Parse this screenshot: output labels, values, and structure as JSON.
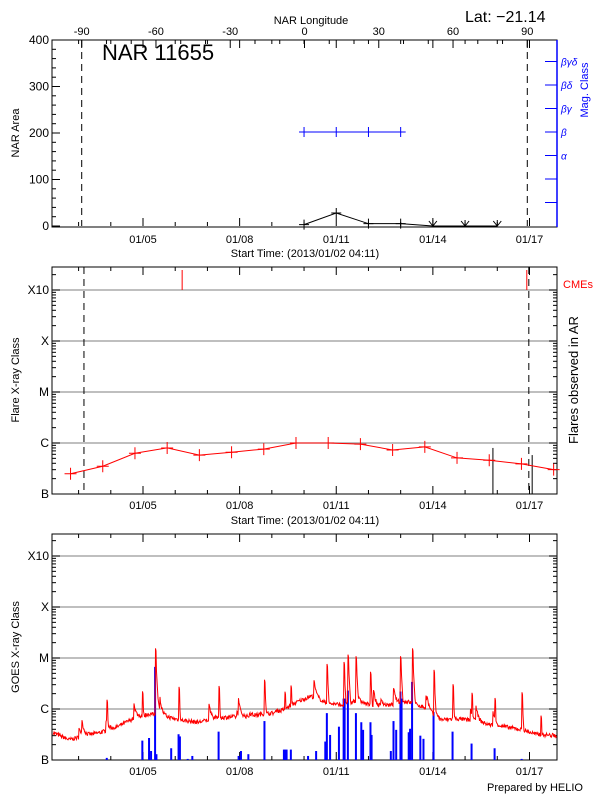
{
  "header": {
    "lat_label": "Lat: −21.14",
    "top_axis_label": "NAR Longitude",
    "region_label": "NAR 11655",
    "footer": "Prepared by HELIO"
  },
  "colors": {
    "flare": "#ff0000",
    "mag_class": "#0000ff",
    "goes": "#ff0000",
    "goes_events": "#0000ff",
    "grid": "#999999",
    "axis": "#000000"
  },
  "chart_data": [
    {
      "type": "line",
      "ylabel": "NAR Area",
      "ylim": [
        0,
        400
      ],
      "yticks": [
        "0",
        "100",
        "200",
        "300",
        "400"
      ],
      "xlabel": "Start Time: (2013/01/02 04:11)",
      "x_range": [
        "01/02 04:11",
        "01/17 20:30"
      ],
      "xticks": [
        "01/05",
        "01/08",
        "01/11",
        "01/14",
        "01/17"
      ],
      "top_axis": {
        "label": "NAR Longitude",
        "xlim": [
          -102,
          102
        ],
        "ticks": [
          "-90",
          "-60",
          "-30",
          "0",
          "30",
          "60",
          "90"
        ]
      },
      "limb_longitudes": [
        -90,
        90
      ],
      "annotation": "NAR 11655",
      "area_series": [
        {
          "t": "01/10 00:00",
          "v": 3,
          "marker": "plus"
        },
        {
          "t": "01/11 00:00",
          "v": 28,
          "marker": "plus"
        },
        {
          "t": "01/12 00:00",
          "v": 5,
          "marker": "plus"
        },
        {
          "t": "01/13 00:00",
          "v": 5,
          "marker": "plus"
        },
        {
          "t": "01/14 00:00",
          "v": 0,
          "marker": "arrow-down"
        },
        {
          "t": "01/15 00:00",
          "v": 0,
          "marker": "arrow-down"
        },
        {
          "t": "01/16 00:00",
          "v": 0,
          "marker": "arrow-down"
        }
      ],
      "mag_class_axis": {
        "label": "Mag. Class",
        "classes": [
          "",
          "",
          "α",
          "β",
          "βγ",
          "βδ",
          "βγδ"
        ]
      },
      "mag_class_series": [
        {
          "t": "01/10 00:00",
          "class": "β"
        },
        {
          "t": "01/11 00:00",
          "class": "β"
        },
        {
          "t": "01/12 00:00",
          "class": "β"
        },
        {
          "t": "01/13 00:00",
          "class": "β"
        }
      ]
    },
    {
      "type": "line",
      "ylabel": "Flare X-ray Class",
      "y2label": "Flares observed in AR",
      "scale": "log",
      "yticks": [
        "B",
        "C",
        "M",
        "X",
        "X10"
      ],
      "xlabel": "Start Time: (2013/01/02 04:11)",
      "x_range": [
        "01/02 04:11",
        "01/17 20:30"
      ],
      "xticks": [
        "01/05",
        "01/08",
        "01/11",
        "01/14",
        "01/17"
      ],
      "grid": true,
      "limb_times": [
        "01/03 04:00",
        "01/16 23:30"
      ],
      "flare_class_series": [
        {
          "t": "01/02 18:00",
          "c": "B2.5"
        },
        {
          "t": "01/03 18:00",
          "c": "B3.5"
        },
        {
          "t": "01/04 18:00",
          "c": "B6.3"
        },
        {
          "t": "01/05 18:00",
          "c": "B8.0"
        },
        {
          "t": "01/06 18:00",
          "c": "B5.8"
        },
        {
          "t": "01/07 18:00",
          "c": "B6.6"
        },
        {
          "t": "01/08 18:00",
          "c": "B7.6"
        },
        {
          "t": "01/09 18:00",
          "c": "C1.0"
        },
        {
          "t": "01/10 18:00",
          "c": "C1.0"
        },
        {
          "t": "01/11 18:00",
          "c": "B9.5"
        },
        {
          "t": "01/12 18:00",
          "c": "B7.3"
        },
        {
          "t": "01/13 18:00",
          "c": "B8.4"
        },
        {
          "t": "01/14 18:00",
          "c": "B5.1"
        },
        {
          "t": "01/15 18:00",
          "c": "B4.6"
        },
        {
          "t": "01/16 18:00",
          "c": "B3.9"
        },
        {
          "t": "01/17 18:00",
          "c": "B3.0"
        }
      ],
      "cme_label": "CMEs",
      "cmes": [
        "01/06 05:10",
        "01/16 22:00"
      ],
      "ar_flares": [
        {
          "t": "01/15 20:45",
          "c": "B8.0"
        },
        {
          "t": "01/17 02:00",
          "c": "B5.8"
        }
      ]
    },
    {
      "type": "line",
      "ylabel": "GOES X-ray Class",
      "scale": "log",
      "yticks": [
        "B",
        "C",
        "M",
        "X",
        "X10"
      ],
      "x_range": [
        "01/02 04:11",
        "01/17 20:30"
      ],
      "xticks": [
        "01/05",
        "01/08",
        "01/11",
        "01/14",
        "01/17"
      ],
      "grid": true,
      "goes_background": [
        {
          "t": "01/02 04:11",
          "c": "B3.5"
        },
        {
          "t": "01/02 17:00",
          "c": "B2.5"
        },
        {
          "t": "01/03 05:00",
          "c": "B3.0"
        },
        {
          "t": "01/03 17:00",
          "c": "B3.5"
        },
        {
          "t": "01/04 05:00",
          "c": "B4.5"
        },
        {
          "t": "01/04 17:00",
          "c": "B6.5"
        },
        {
          "t": "01/05 05:00",
          "c": "B8.0"
        },
        {
          "t": "01/05 17:00",
          "c": "B7.0"
        },
        {
          "t": "01/06 05:00",
          "c": "B6.0"
        },
        {
          "t": "01/06 17:00",
          "c": "B5.5"
        },
        {
          "t": "01/07 05:00",
          "c": "B6.5"
        },
        {
          "t": "01/07 17:00",
          "c": "B7.0"
        },
        {
          "t": "01/08 05:00",
          "c": "B7.0"
        },
        {
          "t": "01/08 17:00",
          "c": "B8.0"
        },
        {
          "t": "01/09 05:00",
          "c": "B8.5"
        },
        {
          "t": "01/09 17:00",
          "c": "C1.3"
        },
        {
          "t": "01/10 05:00",
          "c": "C1.8"
        },
        {
          "t": "01/10 17:00",
          "c": "C1.3"
        },
        {
          "t": "01/11 05:00",
          "c": "C1.2"
        },
        {
          "t": "01/11 17:00",
          "c": "C1.4"
        },
        {
          "t": "01/12 05:00",
          "c": "C1.1"
        },
        {
          "t": "01/12 17:00",
          "c": "C1.2"
        },
        {
          "t": "01/13 05:00",
          "c": "C1.4"
        },
        {
          "t": "01/13 17:00",
          "c": "C1.1"
        },
        {
          "t": "01/14 05:00",
          "c": "B6.0"
        },
        {
          "t": "01/14 17:00",
          "c": "B6.5"
        },
        {
          "t": "01/15 05:00",
          "c": "B6.0"
        },
        {
          "t": "01/15 17:00",
          "c": "B5.0"
        },
        {
          "t": "01/16 05:00",
          "c": "B4.5"
        },
        {
          "t": "01/16 17:00",
          "c": "B4.0"
        },
        {
          "t": "01/17 05:00",
          "c": "B3.2"
        },
        {
          "t": "01/17 20:30",
          "c": "B3.0"
        }
      ],
      "goes_peaks": [
        {
          "t": "01/03 21:00",
          "c": "C1.6"
        },
        {
          "t": "01/04 23:30",
          "c": "C2.3"
        },
        {
          "t": "01/05 09:00",
          "c": "M1.7"
        },
        {
          "t": "01/06 02:30",
          "c": "C3.0"
        },
        {
          "t": "01/07 08:20",
          "c": "C3.1"
        },
        {
          "t": "01/08 18:30",
          "c": "C3.8"
        },
        {
          "t": "01/09 09:30",
          "c": "C2.4"
        },
        {
          "t": "01/09 14:10",
          "c": "C3.0"
        },
        {
          "t": "01/10 17:00",
          "c": "C7.9"
        },
        {
          "t": "01/11 05:30",
          "c": "C9.1"
        },
        {
          "t": "01/11 08:40",
          "c": "M1.2"
        },
        {
          "t": "01/11 14:40",
          "c": "M1.1"
        },
        {
          "t": "01/12 01:30",
          "c": "C5.4"
        },
        {
          "t": "01/12 23:50",
          "c": "M1.1"
        },
        {
          "t": "01/13 08:30",
          "c": "M1.7"
        },
        {
          "t": "01/14 00:30",
          "c": "C6.5"
        },
        {
          "t": "01/14 14:40",
          "c": "C3.4"
        },
        {
          "t": "01/15 04:50",
          "c": "C2.3"
        },
        {
          "t": "01/15 22:00",
          "c": "C1.8"
        },
        {
          "t": "01/16 18:10",
          "c": "C2.3"
        },
        {
          "t": "01/17 08:30",
          "c": "B7.6"
        }
      ],
      "goes_events": [
        {
          "t": "01/03 21:00",
          "c": "B1.1"
        },
        {
          "t": "01/04 23:30",
          "c": "B2.4"
        },
        {
          "t": "01/05 04:30",
          "c": "B2.7"
        },
        {
          "t": "01/05 06:00",
          "c": "B1.5"
        },
        {
          "t": "01/05 09:00",
          "c": "C6.7"
        },
        {
          "t": "01/05 10:00",
          "c": "B1.3"
        },
        {
          "t": "01/05 21:00",
          "c": "B1.7"
        },
        {
          "t": "01/06 02:30",
          "c": "B3.2"
        },
        {
          "t": "01/06 03:30",
          "c": "B2.9"
        },
        {
          "t": "01/06 09:20",
          "c": "B1.05"
        },
        {
          "t": "01/06 12:45",
          "c": "B1.2"
        },
        {
          "t": "01/07 08:20",
          "c": "B3.6"
        },
        {
          "t": "01/07 23:15",
          "c": "B1.2"
        },
        {
          "t": "01/08 01:00",
          "c": "B1.5"
        },
        {
          "t": "01/08 06:30",
          "c": "B1.3"
        },
        {
          "t": "01/08 18:30",
          "c": "B5.8"
        },
        {
          "t": "01/09 09:00",
          "c": "B1.6"
        },
        {
          "t": "01/09 10:00",
          "c": "B1.6"
        },
        {
          "t": "01/09 11:00",
          "c": "B1.6"
        },
        {
          "t": "01/09 14:10",
          "c": "B1.6"
        },
        {
          "t": "01/10 03:00",
          "c": "B1.2"
        },
        {
          "t": "01/10 09:00",
          "c": "B1.5"
        },
        {
          "t": "01/10 15:50",
          "c": "B2.3"
        },
        {
          "t": "01/10 17:00",
          "c": "B8.3"
        },
        {
          "t": "01/10 19:25",
          "c": "B3.1"
        },
        {
          "t": "01/11 02:00",
          "c": "B4.5"
        },
        {
          "t": "01/11 05:30",
          "c": "C1.6"
        },
        {
          "t": "01/11 06:15",
          "c": "C1.6"
        },
        {
          "t": "01/11 08:40",
          "c": "C2.3"
        },
        {
          "t": "01/11 14:40",
          "c": "B8.3"
        },
        {
          "t": "01/11 18:40",
          "c": "B5.5"
        },
        {
          "t": "01/11 20:00",
          "c": "B3.9"
        },
        {
          "t": "01/12 01:30",
          "c": "B5.5"
        },
        {
          "t": "01/12 02:20",
          "c": "B3.1"
        },
        {
          "t": "01/12 16:40",
          "c": "B1.5"
        },
        {
          "t": "01/12 18:40",
          "c": "B5.8"
        },
        {
          "t": "01/12 20:40",
          "c": "B3.9"
        },
        {
          "t": "01/12 23:50",
          "c": "C2.2"
        },
        {
          "t": "01/13 00:40",
          "c": "C1.6"
        },
        {
          "t": "01/13 06:00",
          "c": "B3.5"
        },
        {
          "t": "01/13 07:00",
          "c": "B4.1"
        },
        {
          "t": "01/13 08:30",
          "c": "C3.4"
        },
        {
          "t": "01/13 14:40",
          "c": "B3.0"
        },
        {
          "t": "01/13 17:00",
          "c": "B2.6"
        },
        {
          "t": "01/14 00:30",
          "c": "B8.7"
        },
        {
          "t": "01/14 14:40",
          "c": "B3.6"
        },
        {
          "t": "01/15 04:50",
          "c": "B2.1"
        },
        {
          "t": "01/15 22:00",
          "c": "B1.7"
        },
        {
          "t": "01/16 18:10",
          "c": "B1.05"
        }
      ]
    }
  ]
}
